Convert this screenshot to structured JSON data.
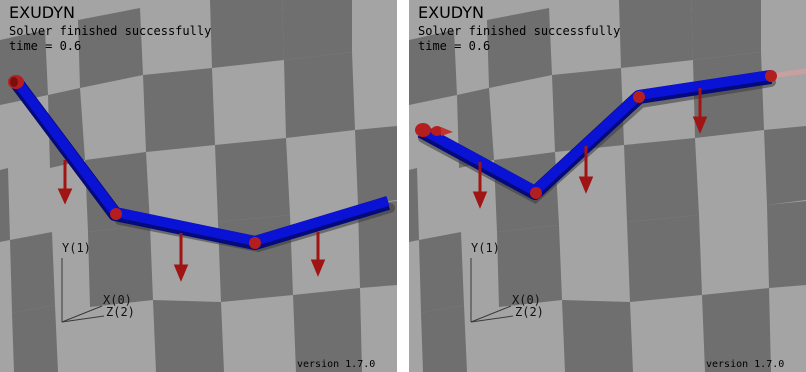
{
  "colors": {
    "floor_light": "#a4a4a4",
    "floor_dark": "#6f6f6f",
    "beam_blue": "#0a12d6",
    "beam_blue_dark": "#050a7a",
    "joint_red": "#b51e1e",
    "force_red": "#a01414",
    "axis_color": "#3a3a3a"
  },
  "views": [
    {
      "app_name": "EXUDYN",
      "status": "Solver finished successfully",
      "time_text": "time = 0.6",
      "axis_y": "Y(1)",
      "axis_x": "X(0)",
      "axis_z": "Z(2)",
      "version": "version 1.7.0"
    },
    {
      "app_name": "EXUDYN",
      "status": "Solver finished successfully",
      "time_text": "time = 0.6",
      "axis_y": "Y(1)",
      "axis_x": "X(0)",
      "axis_z": "Z(2)",
      "version": "version 1.7.0"
    }
  ]
}
